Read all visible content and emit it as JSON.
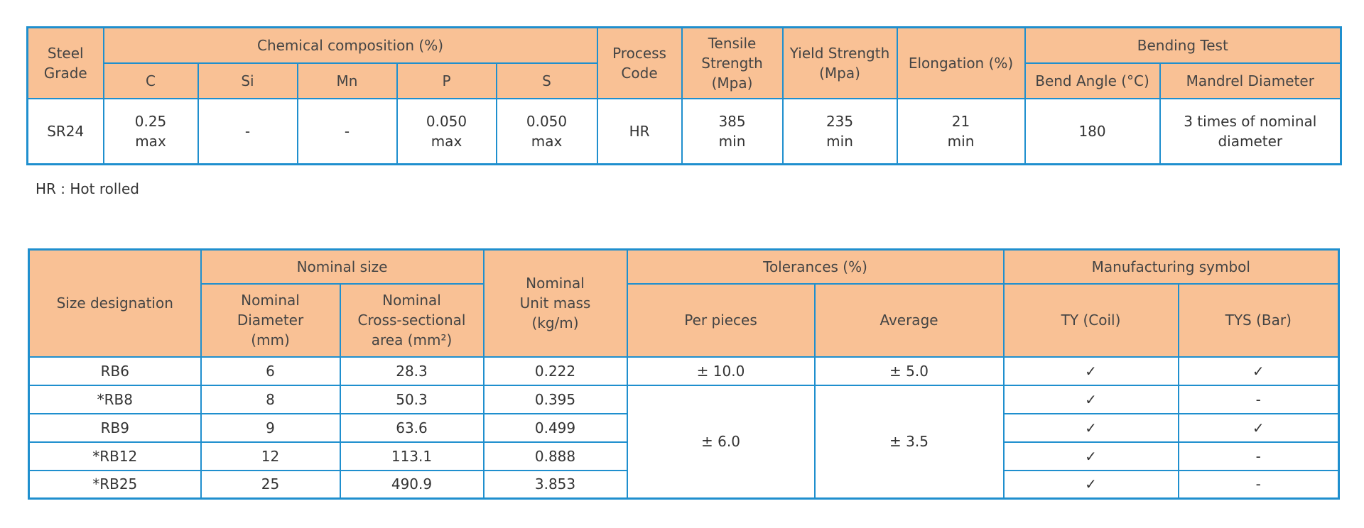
{
  "table1": {
    "header": {
      "steel_grade": "Steel Grade",
      "chemical": "Chemical composition (%)",
      "chem_cols": [
        "C",
        "Si",
        "Mn",
        "P",
        "S"
      ],
      "process": "Process Code",
      "tensile": "Tensile Strength (Mpa)",
      "yield": "Yield Strength (Mpa)",
      "elongation": "Elongation (%)",
      "bending": "Bending Test",
      "bending_cols": [
        "Bend Angle (°C)",
        "Mandrel Diameter"
      ]
    },
    "rows": [
      [
        "SR24",
        "0.25\nmax",
        "-",
        "-",
        "0.050\nmax",
        "0.050\nmax",
        "HR",
        "385\nmin",
        "235\nmin",
        "21\nmin",
        "180",
        "3 times of nominal\ndiameter"
      ]
    ]
  },
  "note": "HR : Hot rolled",
  "table2": {
    "header": {
      "size_designation": "Size designation",
      "nominal_size": "Nominal size",
      "nominal_diameter": "Nominal\nDiameter\n(mm)",
      "cross_section": "Nominal\nCross-sectional\narea (mm²)",
      "unit_mass": "Nominal\nUnit mass\n(kg/m)",
      "tolerances": "Tolerances (%)",
      "per_pieces": "Per pieces",
      "average": "Average",
      "manufacturing": "Manufacturing symbol",
      "ty": "TY (Coil)",
      "tys": "TYS (Bar)"
    },
    "rows": [
      [
        "RB6",
        "6",
        "28.3",
        "0.222",
        "✓",
        "✓"
      ],
      [
        "*RB8",
        "8",
        "50.3",
        "0.395",
        "✓",
        "-"
      ],
      [
        "RB9",
        "9",
        "63.6",
        "0.499",
        "✓",
        "✓"
      ],
      [
        "*RB12",
        "12",
        "113.1",
        "0.888",
        "✓",
        "-"
      ],
      [
        "*RB25",
        "25",
        "490.9",
        "3.853",
        "✓",
        "-"
      ]
    ],
    "tolerance_groups": [
      {
        "per_pieces": "± 10.0",
        "average": "± 5.0"
      },
      {
        "per_pieces": "± 6.0",
        "average": "± 3.5"
      }
    ]
  }
}
